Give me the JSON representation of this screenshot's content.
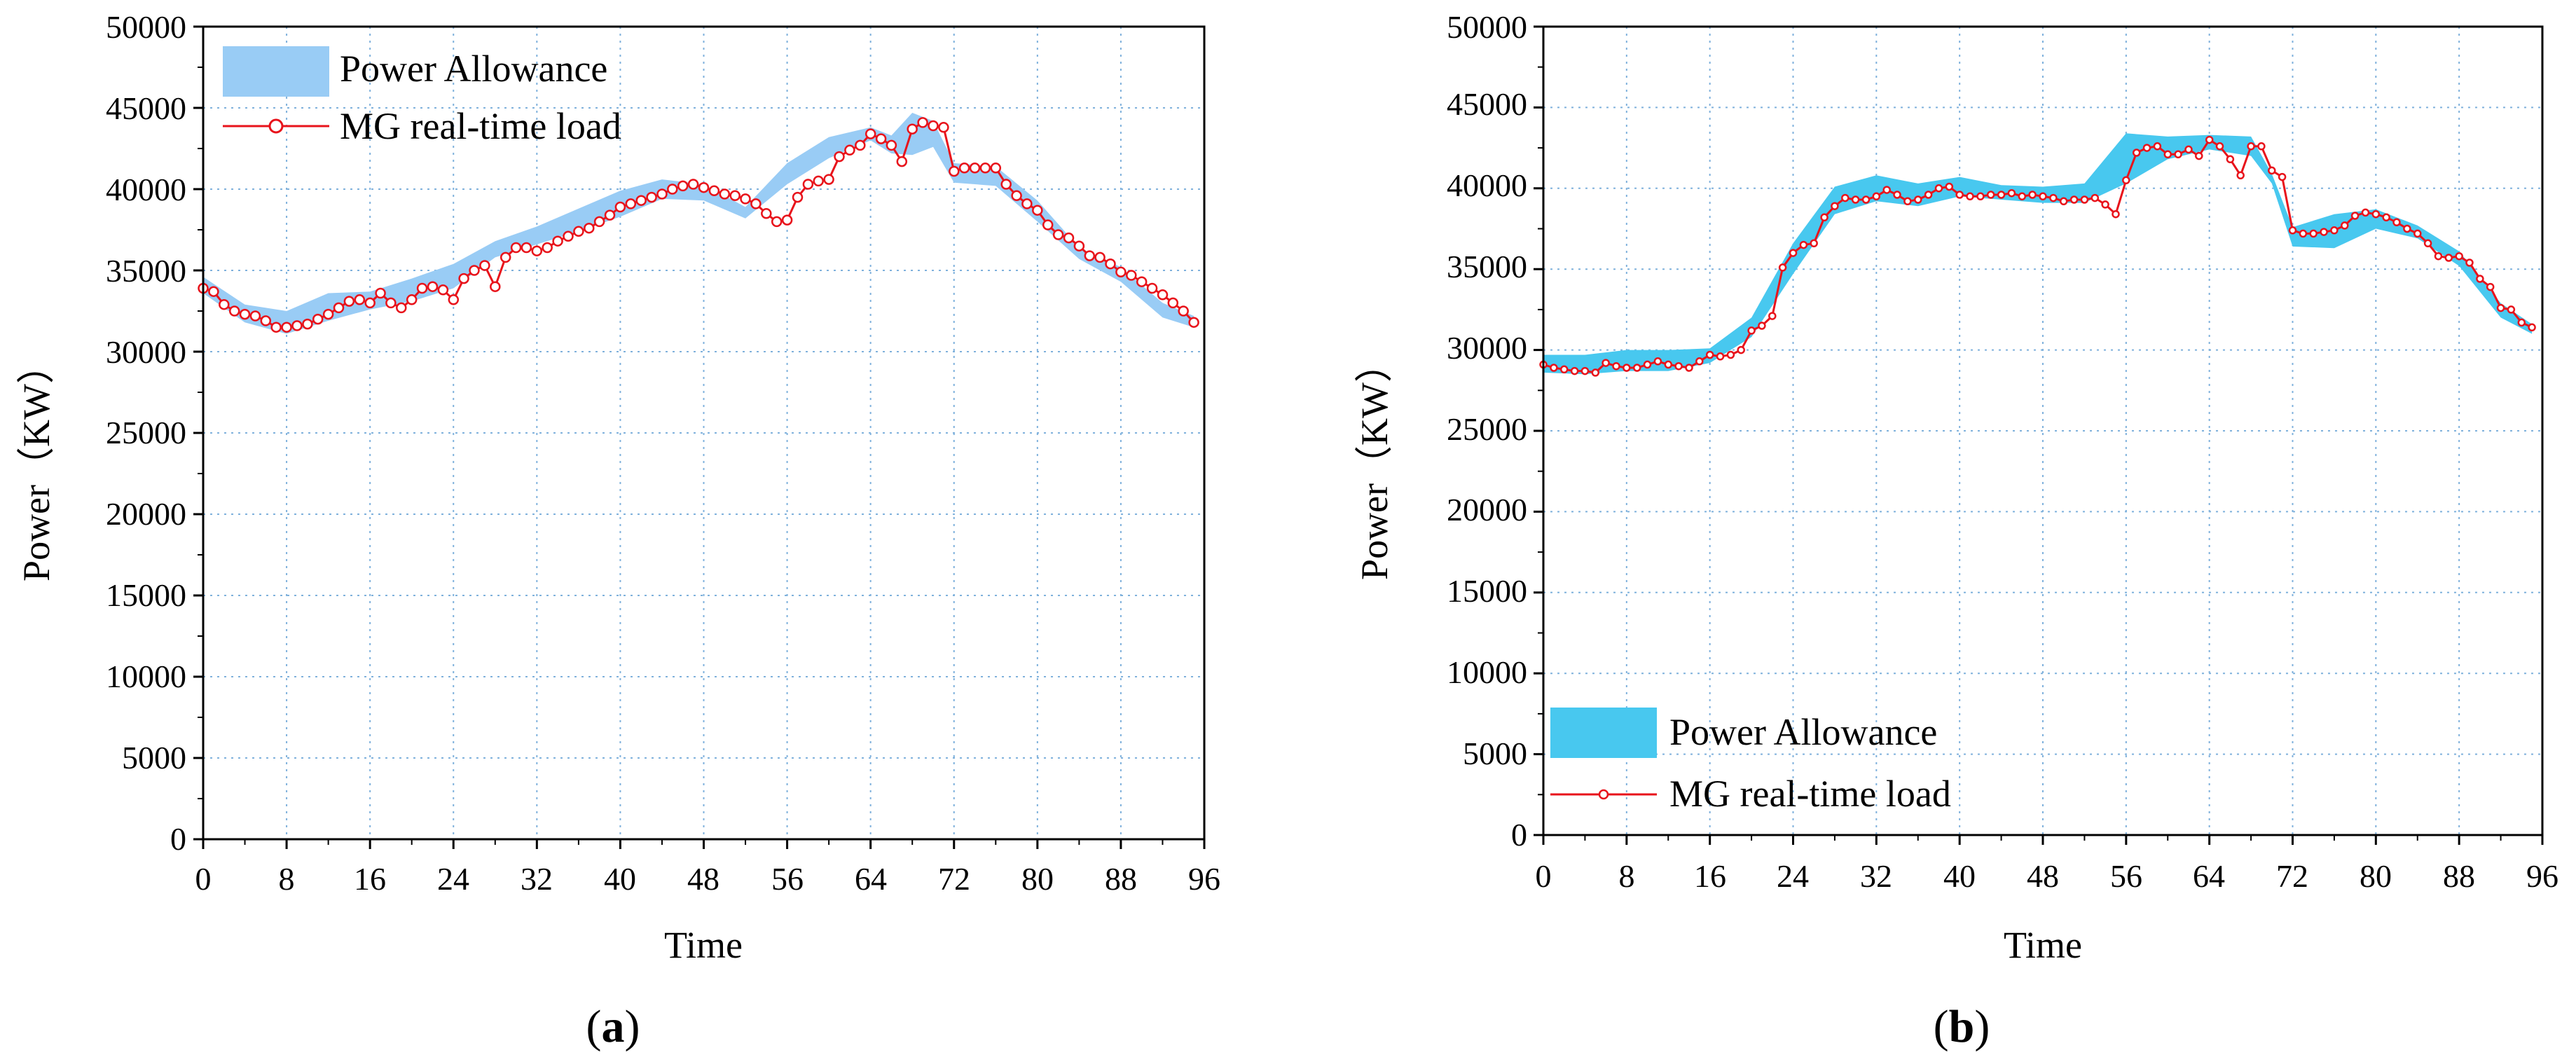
{
  "chart_data": [
    {
      "panel_label": "a",
      "type": "area",
      "xlabel": "Time",
      "ylabel": "Power（KW）",
      "xlim": [
        0,
        96
      ],
      "ylim": [
        0,
        50000
      ],
      "xticks": [
        "0",
        "8",
        "16",
        "24",
        "32",
        "40",
        "48",
        "56",
        "64",
        "72",
        "80",
        "88",
        "96"
      ],
      "yticks": [
        "0",
        "5000",
        "10000",
        "15000",
        "20000",
        "25000",
        "30000",
        "35000",
        "40000",
        "45000",
        "50000"
      ],
      "grid": true,
      "legend_position": "top-left",
      "band_color": "#99ccf5",
      "line_color": "#e8131b",
      "series": [
        {
          "name": "Power Allowance",
          "kind": "band",
          "x": [
            0,
            4,
            8,
            12,
            16,
            20,
            24,
            28,
            32,
            36,
            40,
            44,
            48,
            52,
            56,
            60,
            64,
            66,
            68,
            70,
            72,
            76,
            80,
            84,
            88,
            92,
            95
          ],
          "lower": [
            33600,
            31800,
            31100,
            31900,
            32600,
            33100,
            33900,
            35800,
            36600,
            37400,
            38300,
            39400,
            39300,
            38200,
            40300,
            41900,
            43000,
            42200,
            42100,
            42600,
            40400,
            40200,
            38000,
            35700,
            34300,
            32100,
            31500
          ],
          "upper": [
            34600,
            32900,
            32500,
            33600,
            33700,
            34500,
            35400,
            36800,
            37700,
            38800,
            39900,
            40600,
            40300,
            38900,
            41600,
            43200,
            43800,
            43300,
            44700,
            44200,
            41600,
            41400,
            39300,
            36400,
            35200,
            33000,
            32200
          ]
        },
        {
          "name": "MG real-time load",
          "kind": "line",
          "values": [
            33900,
            33700,
            32900,
            32500,
            32300,
            32200,
            31900,
            31500,
            31500,
            31600,
            31700,
            32000,
            32300,
            32700,
            33100,
            33200,
            33000,
            33600,
            33000,
            32700,
            33200,
            33900,
            34000,
            33800,
            33200,
            34500,
            35000,
            35300,
            34000,
            35800,
            36400,
            36400,
            36200,
            36400,
            36800,
            37100,
            37400,
            37600,
            38000,
            38400,
            38900,
            39100,
            39300,
            39500,
            39700,
            40000,
            40200,
            40300,
            40100,
            39900,
            39700,
            39600,
            39400,
            39100,
            38500,
            38000,
            38100,
            39500,
            40300,
            40500,
            40600,
            42000,
            42400,
            42700,
            43400,
            43100,
            42700,
            41700,
            43700,
            44100,
            43900,
            43800,
            41100,
            41300,
            41300,
            41300,
            41300,
            40300,
            39600,
            39100,
            38700,
            37800,
            37200,
            37000,
            36500,
            35900,
            35800,
            35400,
            34900,
            34700,
            34300,
            33900,
            33500,
            33000,
            32500,
            31800
          ]
        }
      ]
    },
    {
      "panel_label": "b",
      "type": "area",
      "xlabel": "Time",
      "ylabel": "Power（KW）",
      "xlim": [
        0,
        96
      ],
      "ylim": [
        0,
        50000
      ],
      "xticks": [
        "0",
        "8",
        "16",
        "24",
        "32",
        "40",
        "48",
        "56",
        "64",
        "72",
        "80",
        "88",
        "96"
      ],
      "yticks": [
        "0",
        "5000",
        "10000",
        "15000",
        "20000",
        "25000",
        "30000",
        "35000",
        "40000",
        "45000",
        "50000"
      ],
      "grid": true,
      "legend_position": "bottom-left",
      "band_color": "#48c8ef",
      "line_color": "#e8131b",
      "series": [
        {
          "name": "Power Allowance",
          "kind": "band",
          "x": [
            0,
            4,
            8,
            12,
            16,
            20,
            24,
            28,
            32,
            36,
            40,
            44,
            48,
            52,
            56,
            60,
            64,
            68,
            70,
            72,
            76,
            80,
            84,
            88,
            92,
            95
          ],
          "lower": [
            28600,
            28500,
            28700,
            28700,
            29200,
            30800,
            34700,
            38400,
            39200,
            38900,
            39500,
            39300,
            39100,
            39100,
            40300,
            41800,
            42400,
            42000,
            40300,
            36400,
            36300,
            37500,
            36900,
            35200,
            32000,
            31000
          ],
          "upper": [
            29700,
            29700,
            30000,
            30000,
            30100,
            32000,
            36600,
            40100,
            40800,
            40300,
            40700,
            40200,
            40100,
            40300,
            43400,
            43200,
            43300,
            43200,
            40900,
            37600,
            38400,
            38700,
            37700,
            36100,
            32900,
            31600
          ]
        },
        {
          "name": "MG real-time load",
          "kind": "line",
          "values": [
            29100,
            28900,
            28800,
            28700,
            28700,
            28600,
            29200,
            29000,
            28900,
            28900,
            29100,
            29300,
            29100,
            29000,
            28900,
            29300,
            29700,
            29600,
            29700,
            30000,
            31200,
            31500,
            32100,
            35100,
            36000,
            36500,
            36600,
            38200,
            38900,
            39400,
            39300,
            39300,
            39500,
            39900,
            39600,
            39200,
            39300,
            39600,
            40000,
            40100,
            39600,
            39500,
            39500,
            39600,
            39600,
            39700,
            39500,
            39600,
            39500,
            39400,
            39200,
            39300,
            39300,
            39400,
            39000,
            38400,
            40500,
            42200,
            42500,
            42600,
            42100,
            42100,
            42400,
            42000,
            43000,
            42600,
            41800,
            40800,
            42600,
            42600,
            41100,
            40700,
            37400,
            37200,
            37200,
            37300,
            37400,
            37700,
            38300,
            38500,
            38400,
            38200,
            37900,
            37500,
            37200,
            36600,
            35800,
            35700,
            35800,
            35400,
            34400,
            33900,
            32600,
            32500,
            31700,
            31400
          ]
        }
      ]
    }
  ]
}
